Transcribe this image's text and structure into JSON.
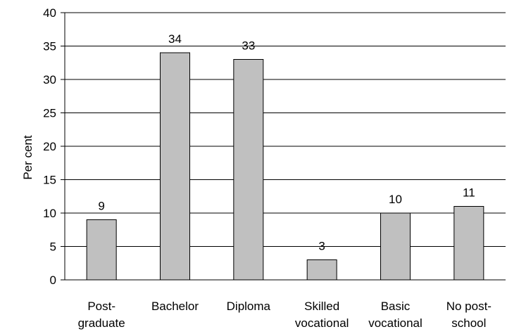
{
  "chart_data": {
    "type": "bar",
    "ylabel": "Per cent",
    "ylim": [
      0,
      40
    ],
    "yticks": [
      0,
      5,
      10,
      15,
      20,
      25,
      30,
      35,
      40
    ],
    "grid": true,
    "legend": "none",
    "categories": [
      [
        "Post-",
        "graduate"
      ],
      [
        "Bachelor"
      ],
      [
        "Diploma"
      ],
      [
        "Skilled",
        "vocational"
      ],
      [
        "Basic",
        "vocational"
      ],
      [
        "No post-",
        "school"
      ]
    ],
    "values": [
      9,
      34,
      33,
      3,
      10,
      11
    ],
    "bar_color": "#c0c0c0",
    "bar_stroke": "#000000"
  }
}
